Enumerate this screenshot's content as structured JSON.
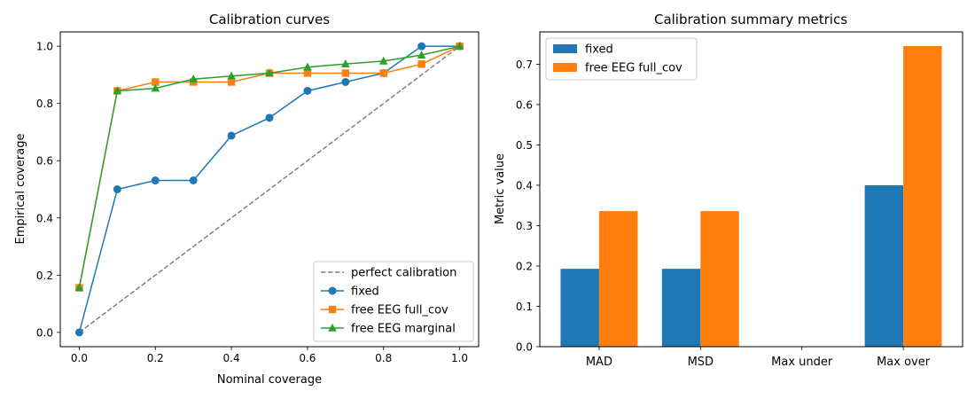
{
  "chart_data": [
    {
      "type": "line",
      "title": "Calibration curves",
      "xlabel": "Nominal coverage",
      "ylabel": "Empirical coverage",
      "xlim": [
        -0.05,
        1.05
      ],
      "ylim": [
        -0.05,
        1.05
      ],
      "xticks": [
        0.0,
        0.2,
        0.4,
        0.6,
        0.8,
        1.0
      ],
      "xtick_labels": [
        "0.0",
        "0.2",
        "0.4",
        "0.6",
        "0.8",
        "1.0"
      ],
      "yticks": [
        0.0,
        0.2,
        0.4,
        0.6,
        0.8,
        1.0
      ],
      "ytick_labels": [
        "0.0",
        "0.2",
        "0.4",
        "0.6",
        "0.8",
        "1.0"
      ],
      "grid": false,
      "legend_position": "lower-right",
      "x": [
        0.0,
        0.1,
        0.2,
        0.3,
        0.4,
        0.5,
        0.6,
        0.7,
        0.8,
        0.9,
        1.0
      ],
      "series": [
        {
          "name": "perfect calibration",
          "style": "dashed",
          "marker": "none",
          "color": "#808080",
          "x": [
            0.0,
            1.0
          ],
          "values": [
            0.0,
            1.0
          ]
        },
        {
          "name": "fixed",
          "style": "solid",
          "marker": "circle",
          "color": "#1f77b4",
          "values": [
            0.0,
            0.5,
            0.531,
            0.531,
            0.6875,
            0.75,
            0.844,
            0.875,
            0.906,
            1.0,
            1.0
          ]
        },
        {
          "name": "free EEG full_cov",
          "style": "solid",
          "marker": "square",
          "color": "#ff7f0e",
          "values": [
            0.156,
            0.844,
            0.875,
            0.875,
            0.875,
            0.906,
            0.906,
            0.906,
            0.906,
            0.9375,
            1.0
          ]
        },
        {
          "name": "free EEG marginal",
          "style": "solid",
          "marker": "triangle",
          "color": "#2ca02c",
          "values": [
            0.156,
            0.844,
            0.853,
            0.885,
            0.896,
            0.906,
            0.927,
            0.938,
            0.948,
            0.969,
            1.0
          ]
        }
      ]
    },
    {
      "type": "bar",
      "title": "Calibration summary metrics",
      "xlabel": "",
      "ylabel": "Metric value",
      "categories": [
        "MAD",
        "MSD",
        "Max under",
        "Max over"
      ],
      "ylim": [
        0.0,
        0.78
      ],
      "yticks": [
        0.0,
        0.1,
        0.2,
        0.3,
        0.4,
        0.5,
        0.6,
        0.7
      ],
      "ytick_labels": [
        "0.0",
        "0.1",
        "0.2",
        "0.3",
        "0.4",
        "0.5",
        "0.6",
        "0.7"
      ],
      "grid": false,
      "legend_position": "top-left",
      "series": [
        {
          "name": "fixed",
          "color": "#1f77b4",
          "values": [
            0.193,
            0.193,
            0.0,
            0.4
          ]
        },
        {
          "name": "free EEG full_cov",
          "color": "#ff7f0e",
          "values": [
            0.336,
            0.336,
            0.0,
            0.745
          ]
        }
      ]
    }
  ]
}
